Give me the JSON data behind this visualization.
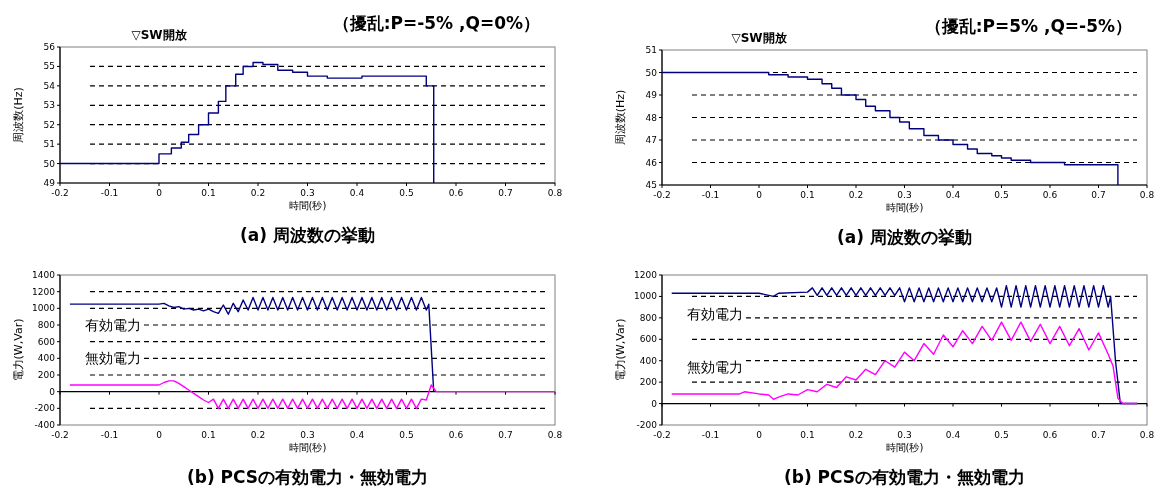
{
  "chart_data": [
    {
      "type": "step",
      "title": "（擾乱:P=-5% ,Q=0%）",
      "xlabel": "時間(秒)",
      "ylabel": "周波数(Hz)",
      "xlim": [
        -0.2,
        0.8
      ],
      "xticks": [
        -0.2,
        -0.1,
        0,
        0.1,
        0.2,
        0.3,
        0.4,
        0.5,
        0.6,
        0.7,
        0.8
      ],
      "ylim": [
        49,
        56
      ],
      "yticks": [
        49,
        50,
        51,
        52,
        53,
        54,
        55,
        56
      ],
      "grid": "y",
      "annotations": [
        "▽SW開放",
        "(a) 周波数の挙動"
      ],
      "series": [
        {
          "color": "#000080",
          "x": [
            -0.2,
            0,
            0.025,
            0.045,
            0.06,
            0.08,
            0.1,
            0.12,
            0.135,
            0.155,
            0.17,
            0.19,
            0.21,
            0.24,
            0.27,
            0.3,
            0.34,
            0.41,
            0.54,
            0.555
          ],
          "values": [
            50,
            50.5,
            50.8,
            51.1,
            51.5,
            52,
            52.6,
            53.2,
            54,
            54.6,
            55,
            55.2,
            55.1,
            54.8,
            54.7,
            54.5,
            54.4,
            54.5,
            54,
            49
          ]
        }
      ]
    },
    {
      "type": "step",
      "title": "（擾乱:P=5% ,Q=-5%）",
      "xlabel": "時間(秒)",
      "ylabel": "周波数(Hz)",
      "xlim": [
        -0.2,
        0.8
      ],
      "xticks": [
        -0.2,
        -0.1,
        0,
        0.1,
        0.2,
        0.3,
        0.4,
        0.5,
        0.6,
        0.7,
        0.8
      ],
      "ylim": [
        45,
        51
      ],
      "yticks": [
        45,
        46,
        47,
        48,
        49,
        50,
        51
      ],
      "grid": "y",
      "annotations": [
        "▽SW開放",
        "(a) 周波数の挙動"
      ],
      "series": [
        {
          "color": "#000080",
          "x": [
            -0.2,
            0.02,
            0.06,
            0.1,
            0.13,
            0.15,
            0.17,
            0.2,
            0.22,
            0.24,
            0.27,
            0.29,
            0.31,
            0.34,
            0.37,
            0.4,
            0.43,
            0.45,
            0.48,
            0.5,
            0.52,
            0.56,
            0.63,
            0.74
          ],
          "values": [
            50,
            49.9,
            49.8,
            49.7,
            49.5,
            49.3,
            49,
            48.8,
            48.5,
            48.3,
            48,
            47.8,
            47.5,
            47.2,
            47,
            46.8,
            46.6,
            46.4,
            46.3,
            46.2,
            46.1,
            46,
            45.9,
            45
          ]
        }
      ]
    },
    {
      "type": "line",
      "xlabel": "時間(秒)",
      "ylabel": "電力(W,Var)",
      "xlim": [
        -0.2,
        0.8
      ],
      "xticks": [
        -0.2,
        -0.1,
        0,
        0.1,
        0.2,
        0.3,
        0.4,
        0.5,
        0.6,
        0.7,
        0.8
      ],
      "ylim": [
        -400,
        1400
      ],
      "yticks": [
        -400,
        -200,
        0,
        200,
        400,
        600,
        800,
        1000,
        1200,
        1400
      ],
      "grid": "y",
      "annotations": [
        "(b) PCSの有効電力・無効電力"
      ],
      "series": [
        {
          "name": "有効電力",
          "color": "#000080",
          "x": [
            -0.18,
            0,
            0.01,
            0.02,
            0.03,
            0.04,
            0.05,
            0.06,
            0.07,
            0.08,
            0.09,
            0.1,
            0.11,
            0.12,
            0.13,
            0.14,
            0.15,
            0.16,
            0.17,
            0.18,
            0.19,
            0.2,
            0.21,
            0.22,
            0.23,
            0.24,
            0.25,
            0.26,
            0.27,
            0.28,
            0.29,
            0.3,
            0.31,
            0.32,
            0.33,
            0.34,
            0.35,
            0.36,
            0.37,
            0.38,
            0.39,
            0.4,
            0.41,
            0.42,
            0.43,
            0.44,
            0.45,
            0.46,
            0.47,
            0.48,
            0.49,
            0.5,
            0.51,
            0.52,
            0.53,
            0.54,
            0.545,
            0.555
          ],
          "values": [
            1050,
            1050,
            1060,
            1030,
            1010,
            1020,
            990,
            1000,
            980,
            990,
            970,
            990,
            960,
            940,
            1040,
            930,
            1060,
            960,
            1100,
            980,
            1130,
            980,
            1130,
            980,
            1130,
            980,
            1130,
            980,
            1130,
            980,
            1130,
            980,
            1130,
            980,
            1130,
            980,
            1130,
            980,
            1130,
            980,
            1130,
            980,
            1130,
            980,
            1130,
            980,
            1130,
            980,
            1130,
            980,
            1130,
            980,
            1130,
            980,
            1130,
            980,
            1050,
            0
          ]
        },
        {
          "name": "無効電力",
          "color": "#ff00ff",
          "x": [
            -0.18,
            0,
            0.01,
            0.02,
            0.03,
            0.04,
            0.05,
            0.06,
            0.07,
            0.08,
            0.09,
            0.1,
            0.11,
            0.12,
            0.13,
            0.14,
            0.15,
            0.16,
            0.17,
            0.18,
            0.19,
            0.2,
            0.21,
            0.22,
            0.23,
            0.24,
            0.25,
            0.26,
            0.27,
            0.28,
            0.29,
            0.3,
            0.31,
            0.32,
            0.33,
            0.34,
            0.35,
            0.36,
            0.37,
            0.38,
            0.39,
            0.4,
            0.41,
            0.42,
            0.43,
            0.44,
            0.45,
            0.46,
            0.47,
            0.48,
            0.49,
            0.5,
            0.51,
            0.52,
            0.53,
            0.54,
            0.55,
            0.56,
            0.8
          ],
          "values": [
            80,
            80,
            110,
            130,
            130,
            100,
            60,
            20,
            -20,
            -60,
            -100,
            -130,
            -90,
            -200,
            -90,
            -200,
            -90,
            -200,
            -90,
            -200,
            -90,
            -200,
            -90,
            -200,
            -90,
            -200,
            -90,
            -200,
            -90,
            -200,
            -90,
            -200,
            -90,
            -200,
            -90,
            -200,
            -90,
            -200,
            -90,
            -200,
            -90,
            -200,
            -90,
            -200,
            -90,
            -200,
            -90,
            -200,
            -90,
            -200,
            -90,
            -200,
            -90,
            -200,
            -90,
            -100,
            80,
            0,
            0
          ]
        }
      ]
    },
    {
      "type": "line",
      "xlabel": "時間(秒)",
      "ylabel": "電力(W,Var)",
      "xlim": [
        -0.2,
        0.8
      ],
      "xticks": [
        -0.2,
        -0.1,
        0,
        0.1,
        0.2,
        0.3,
        0.4,
        0.5,
        0.6,
        0.7,
        0.8
      ],
      "ylim": [
        -200,
        1200
      ],
      "yticks": [
        -200,
        0,
        200,
        400,
        600,
        800,
        1000,
        1200
      ],
      "grid": "y",
      "annotations": [
        "(b) PCSの有効電力・無効電力"
      ],
      "series": [
        {
          "name": "有効電力",
          "color": "#000080",
          "x": [
            -0.18,
            0,
            0.02,
            0.03,
            0.04,
            0.1,
            0.11,
            0.12,
            0.13,
            0.14,
            0.15,
            0.16,
            0.17,
            0.18,
            0.19,
            0.2,
            0.21,
            0.22,
            0.23,
            0.24,
            0.25,
            0.26,
            0.27,
            0.28,
            0.29,
            0.3,
            0.31,
            0.32,
            0.33,
            0.34,
            0.35,
            0.36,
            0.37,
            0.38,
            0.39,
            0.4,
            0.41,
            0.42,
            0.43,
            0.44,
            0.45,
            0.46,
            0.47,
            0.48,
            0.49,
            0.5,
            0.51,
            0.52,
            0.53,
            0.54,
            0.55,
            0.56,
            0.57,
            0.58,
            0.59,
            0.6,
            0.61,
            0.62,
            0.63,
            0.64,
            0.65,
            0.66,
            0.67,
            0.68,
            0.69,
            0.7,
            0.71,
            0.72,
            0.725,
            0.735,
            0.745,
            0.78
          ],
          "values": [
            1030,
            1030,
            1010,
            1000,
            1030,
            1040,
            1080,
            1010,
            1080,
            1010,
            1080,
            1010,
            1080,
            1010,
            1080,
            1010,
            1080,
            1010,
            1080,
            1010,
            1080,
            1010,
            1080,
            1010,
            1080,
            950,
            1080,
            950,
            1080,
            950,
            1080,
            950,
            1080,
            950,
            1080,
            950,
            1080,
            950,
            1080,
            950,
            1080,
            950,
            1080,
            950,
            1080,
            900,
            1100,
            900,
            1100,
            900,
            1100,
            900,
            1100,
            900,
            1100,
            900,
            1100,
            900,
            1100,
            900,
            1100,
            900,
            1100,
            900,
            1100,
            900,
            1100,
            900,
            1000,
            400,
            0,
            0
          ]
        },
        {
          "name": "無効電力",
          "color": "#ff00ff",
          "x": [
            -0.18,
            -0.04,
            -0.03,
            0,
            0.02,
            0.03,
            0.04,
            0.06,
            0.08,
            0.1,
            0.12,
            0.14,
            0.16,
            0.18,
            0.2,
            0.22,
            0.24,
            0.26,
            0.28,
            0.3,
            0.32,
            0.34,
            0.36,
            0.38,
            0.4,
            0.42,
            0.44,
            0.46,
            0.48,
            0.5,
            0.52,
            0.54,
            0.56,
            0.58,
            0.6,
            0.62,
            0.64,
            0.66,
            0.68,
            0.7,
            0.72,
            0.73,
            0.74,
            0.75,
            0.78
          ],
          "values": [
            90,
            90,
            110,
            90,
            80,
            40,
            60,
            90,
            80,
            130,
            110,
            180,
            150,
            250,
            220,
            320,
            270,
            400,
            340,
            480,
            400,
            560,
            460,
            640,
            530,
            680,
            560,
            720,
            590,
            760,
            590,
            760,
            580,
            740,
            560,
            720,
            540,
            700,
            500,
            660,
            460,
            350,
            50,
            0,
            0
          ]
        }
      ]
    }
  ]
}
